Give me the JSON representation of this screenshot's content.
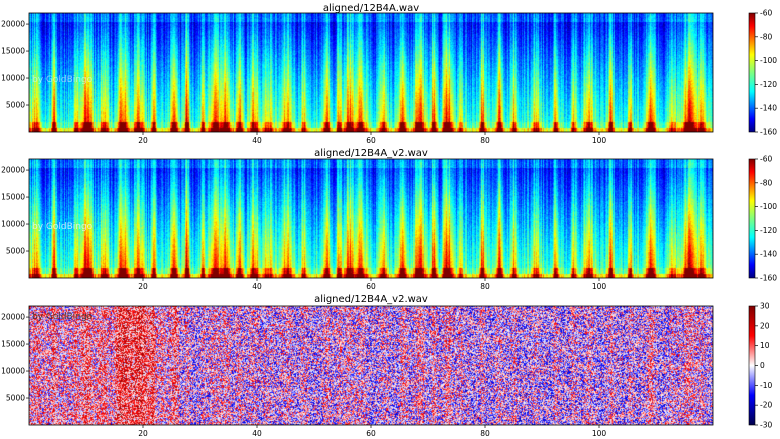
{
  "chart_data": [
    {
      "type": "heatmap",
      "title": "aligned/12B4A.wav",
      "xlabel": "",
      "ylabel": "",
      "xlim": [
        0,
        120
      ],
      "ylim": [
        0,
        22050
      ],
      "x_ticks": [
        20,
        40,
        60,
        80,
        100
      ],
      "y_ticks": [
        5000,
        10000,
        15000,
        20000
      ],
      "colormap": "jet",
      "colorbar": {
        "min": -160,
        "max": -60,
        "ticks": [
          -60,
          -80,
          -100,
          -120,
          -140,
          -160
        ]
      },
      "watermark": "by GoldBingo"
    },
    {
      "type": "heatmap",
      "title": "aligned/12B4A_v2.wav",
      "xlabel": "",
      "ylabel": "",
      "xlim": [
        0,
        120
      ],
      "ylim": [
        0,
        22050
      ],
      "x_ticks": [
        20,
        40,
        60,
        80,
        100
      ],
      "y_ticks": [
        5000,
        10000,
        15000,
        20000
      ],
      "colormap": "jet",
      "colorbar": {
        "min": -160,
        "max": -60,
        "ticks": [
          -60,
          -80,
          -100,
          -120,
          -140,
          -160
        ]
      },
      "watermark": "by GoldBingo"
    },
    {
      "type": "heatmap",
      "title": "aligned/12B4A_v2.wav",
      "xlabel": "",
      "ylabel": "",
      "xlim": [
        0,
        120
      ],
      "ylim": [
        0,
        22050
      ],
      "x_ticks": [
        20,
        40,
        60,
        80,
        100
      ],
      "y_ticks": [
        5000,
        10000,
        15000,
        20000
      ],
      "colormap": "seismic",
      "colorbar": {
        "min": -30,
        "max": 30,
        "ticks": [
          30,
          20,
          10,
          0,
          -10,
          -20,
          -30
        ]
      },
      "watermark": "by GoldBingo"
    }
  ]
}
